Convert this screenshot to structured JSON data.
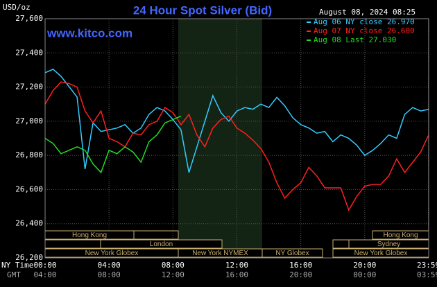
{
  "chart_data": {
    "type": "line",
    "title": "24 Hour Spot Silver (Bid)",
    "y_label": "USD/oz",
    "timestamp": "August 08, 2024 08:25",
    "watermark": "www.kitco.com",
    "x_axis_label": "NY Time",
    "x2_axis_label": "GMT",
    "x": [
      0,
      0.5,
      1,
      1.5,
      2,
      2.5,
      3,
      3.5,
      4,
      4.5,
      5,
      5.5,
      6,
      6.5,
      7,
      7.5,
      8,
      8.5,
      9,
      9.5,
      10,
      10.5,
      11,
      11.5,
      12,
      12.5,
      13,
      13.5,
      14,
      14.5,
      15,
      15.5,
      16,
      16.5,
      17,
      17.5,
      18,
      18.5,
      19,
      19.5,
      20,
      20.5,
      21,
      21.5,
      22,
      22.5,
      23,
      23.5,
      24
    ],
    "series": [
      {
        "name": "Aug 06 NY close 26.970",
        "color": "#33ccff",
        "values": [
          27284,
          27304,
          27263,
          27202,
          27142,
          26720,
          26990,
          26940,
          26950,
          26960,
          26980,
          26930,
          26960,
          27040,
          27080,
          27060,
          27010,
          26950,
          26700,
          26850,
          27000,
          27150,
          27050,
          27000,
          27060,
          27080,
          27070,
          27100,
          27080,
          27140,
          27090,
          27020,
          26980,
          26960,
          26930,
          26940,
          26880,
          26920,
          26900,
          26860,
          26800,
          26830,
          26870,
          26920,
          26900,
          27040,
          27080,
          27060,
          27070
        ]
      },
      {
        "name": "Aug 07 NY close 26.600",
        "color": "#ff2020",
        "values": [
          27100,
          27180,
          27230,
          27220,
          27200,
          27060,
          26990,
          27060,
          26900,
          26880,
          26850,
          26930,
          26920,
          26980,
          27000,
          27080,
          27050,
          26980,
          27040,
          26920,
          26850,
          26960,
          27010,
          27030,
          26960,
          26930,
          26890,
          26840,
          26760,
          26640,
          26550,
          26600,
          26640,
          26730,
          26680,
          26610,
          26610,
          26610,
          26480,
          26560,
          26620,
          26630,
          26630,
          26680,
          26780,
          26700,
          26760,
          26820,
          26920
        ]
      },
      {
        "name": "Aug 08 Last 27.030",
        "color": "#22dd22",
        "values": [
          26900,
          26870,
          26810,
          26830,
          26850,
          26830,
          26750,
          26700,
          26830,
          26810,
          26850,
          26820,
          26760,
          26880,
          26920,
          26990,
          27010,
          27030,
          null,
          null,
          null,
          null,
          null,
          null,
          null,
          null,
          null,
          null,
          null,
          null,
          null,
          null,
          null,
          null,
          null,
          null,
          null,
          null,
          null,
          null,
          null,
          null,
          null,
          null,
          null,
          null,
          null,
          null,
          null
        ]
      }
    ],
    "xlim": [
      0,
      24
    ],
    "xticks": [
      {
        "value": 0,
        "label": "00:00"
      },
      {
        "value": 4,
        "label": "04:00"
      },
      {
        "value": 8,
        "label": "08:00"
      },
      {
        "value": 12,
        "label": "12:00"
      },
      {
        "value": 16,
        "label": "16:00"
      },
      {
        "value": 20,
        "label": "20:00"
      },
      {
        "value": 23.98,
        "label": "23:59"
      }
    ],
    "x2ticks": [
      {
        "value": 0,
        "label": "04:00"
      },
      {
        "value": 4,
        "label": "08:00"
      },
      {
        "value": 8,
        "label": "12:00"
      },
      {
        "value": 12,
        "label": "16:00"
      },
      {
        "value": 16,
        "label": "20:00"
      },
      {
        "value": 20,
        "label": "00:00"
      },
      {
        "value": 23.98,
        "label": "03:59"
      }
    ],
    "ylim": [
      26200,
      27600
    ],
    "yticks": [
      {
        "value": 26200,
        "label": "26,200"
      },
      {
        "value": 26400,
        "label": "26,400"
      },
      {
        "value": 26600,
        "label": "26,600"
      },
      {
        "value": 26800,
        "label": "26,800"
      },
      {
        "value": 27000,
        "label": "27,000"
      },
      {
        "value": 27200,
        "label": "27,200"
      },
      {
        "value": 27400,
        "label": "27,400"
      },
      {
        "value": 27600,
        "label": "27,600"
      }
    ],
    "grid": true,
    "sessions": [
      "Hong Kong",
      "Hong Kong",
      "London",
      "Sydney",
      "New York Globex",
      "New York NYMEX",
      "NY Globex",
      "New York Globex"
    ]
  }
}
